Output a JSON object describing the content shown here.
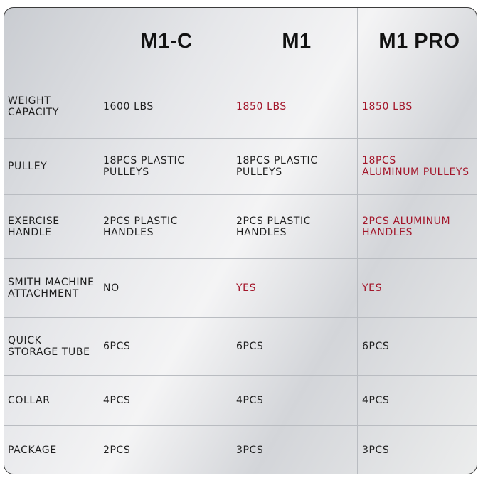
{
  "table": {
    "columns": [
      "M1-C",
      "M1",
      "M1 PRO"
    ],
    "rows": [
      {
        "label": [
          "WEIGHT",
          "CAPACITY"
        ],
        "cells": [
          [
            "1600 LBS"
          ],
          [
            "1850 LBS"
          ],
          [
            "1850 LBS"
          ]
        ]
      },
      {
        "label": [
          "PULLEY"
        ],
        "cells": [
          [
            "18PCS PLASTIC",
            "PULLEYS"
          ],
          [
            "18PCS PLASTIC",
            "PULLEYS"
          ],
          [
            "18PCS",
            "ALUMINUM PULLEYS"
          ]
        ]
      },
      {
        "label": [
          "EXERCISE",
          "HANDLE"
        ],
        "cells": [
          [
            "2PCS PLASTIC",
            "HANDLES"
          ],
          [
            "2PCS PLASTIC",
            "HANDLES"
          ],
          [
            "2PCS ALUMINUM",
            "HANDLES"
          ]
        ]
      },
      {
        "label": [
          "SMITH MACHINE",
          "ATTACHMENT"
        ],
        "cells": [
          [
            "NO"
          ],
          [
            "YES"
          ],
          [
            "YES"
          ]
        ]
      },
      {
        "label": [
          "QUICK",
          "STORAGE TUBE"
        ],
        "cells": [
          [
            "6PCS"
          ],
          [
            "6PCS"
          ],
          [
            "6PCS"
          ]
        ]
      },
      {
        "label": [
          "COLLAR"
        ],
        "cells": [
          [
            "4PCS"
          ],
          [
            "4PCS"
          ],
          [
            "4PCS"
          ]
        ]
      },
      {
        "label": [
          "PACKAGE"
        ],
        "cells": [
          [
            "2PCS"
          ],
          [
            "3PCS"
          ],
          [
            "3PCS"
          ]
        ]
      }
    ]
  }
}
